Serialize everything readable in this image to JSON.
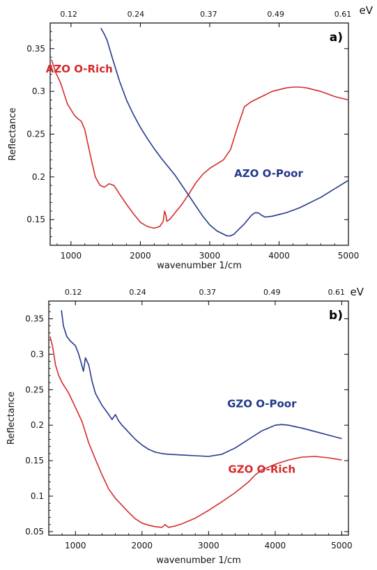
{
  "chart_data": [
    {
      "type": "line",
      "panel_label": "a)",
      "xlabel": "wavenumber 1/cm",
      "ylabel": "Reflectance",
      "top_axis_unit": "eV",
      "xlim": [
        700,
        5000
      ],
      "ylim": [
        0.12,
        0.38
      ],
      "x_ticks": [
        1000,
        2000,
        3000,
        4000,
        5000
      ],
      "x_tick_labels": [
        "1000",
        "2000",
        "3000",
        "4000",
        "5000"
      ],
      "y_ticks": [
        0.15,
        0.2,
        0.25,
        0.3,
        0.35
      ],
      "y_tick_labels": [
        "0.15",
        "0.2",
        "0.25",
        "0.3",
        "0.35"
      ],
      "top_ticks_x": [
        968,
        1935,
        2984,
        3952,
        4920
      ],
      "top_tick_labels": [
        "0.12",
        "0.24",
        "0.37",
        "0.49",
        "0.61"
      ],
      "series": [
        {
          "name": "AZO O-Rich",
          "color": "#d42b2b",
          "label_x": 1120,
          "label_y": 0.322,
          "x": [
            720,
            780,
            850,
            950,
            1050,
            1100,
            1150,
            1200,
            1280,
            1350,
            1420,
            1480,
            1550,
            1620,
            1700,
            1800,
            1900,
            2000,
            2100,
            2200,
            2280,
            2330,
            2350,
            2370,
            2380,
            2420,
            2500,
            2600,
            2700,
            2800,
            2900,
            3000,
            3100,
            3200,
            3300,
            3400,
            3500,
            3600,
            3700,
            3800,
            3900,
            4000,
            4100,
            4200,
            4300,
            4400,
            4500,
            4600,
            4700,
            4800,
            4900,
            5000
          ],
          "values": [
            0.337,
            0.322,
            0.31,
            0.285,
            0.272,
            0.268,
            0.265,
            0.255,
            0.225,
            0.2,
            0.19,
            0.188,
            0.192,
            0.19,
            0.18,
            0.168,
            0.157,
            0.147,
            0.142,
            0.14,
            0.142,
            0.148,
            0.16,
            0.155,
            0.148,
            0.15,
            0.158,
            0.168,
            0.18,
            0.193,
            0.203,
            0.21,
            0.215,
            0.22,
            0.232,
            0.258,
            0.282,
            0.288,
            0.292,
            0.296,
            0.3,
            0.302,
            0.304,
            0.305,
            0.305,
            0.304,
            0.302,
            0.3,
            0.297,
            0.294,
            0.292,
            0.29
          ]
        },
        {
          "name": "AZO O-Poor",
          "color": "#22398a",
          "label_x": 3850,
          "label_y": 0.2,
          "x": [
            1430,
            1480,
            1520,
            1600,
            1700,
            1800,
            1900,
            2000,
            2100,
            2200,
            2300,
            2400,
            2500,
            2600,
            2700,
            2800,
            2900,
            3000,
            3100,
            3200,
            3250,
            3300,
            3350,
            3400,
            3500,
            3600,
            3650,
            3700,
            3750,
            3800,
            3900,
            4000,
            4100,
            4200,
            4300,
            4400,
            4500,
            4600,
            4700,
            4800,
            4900,
            5000
          ],
          "values": [
            0.374,
            0.367,
            0.36,
            0.338,
            0.312,
            0.29,
            0.273,
            0.258,
            0.245,
            0.233,
            0.222,
            0.212,
            0.202,
            0.19,
            0.178,
            0.166,
            0.154,
            0.144,
            0.137,
            0.133,
            0.131,
            0.131,
            0.133,
            0.137,
            0.145,
            0.155,
            0.158,
            0.158,
            0.155,
            0.153,
            0.154,
            0.156,
            0.158,
            0.161,
            0.164,
            0.168,
            0.172,
            0.176,
            0.181,
            0.186,
            0.191,
            0.196
          ]
        }
      ]
    },
    {
      "type": "line",
      "panel_label": "b)",
      "xlabel": "wavenumber 1/cm",
      "ylabel": "Reflectance",
      "top_axis_unit": "eV",
      "xlim": [
        600,
        5100
      ],
      "ylim": [
        0.045,
        0.375
      ],
      "x_ticks": [
        1000,
        2000,
        3000,
        4000,
        5000
      ],
      "x_tick_labels": [
        "1000",
        "2000",
        "3000",
        "4000",
        "5000"
      ],
      "y_ticks": [
        0.05,
        0.1,
        0.15,
        0.2,
        0.25,
        0.3,
        0.35
      ],
      "y_tick_labels": [
        "0.05",
        "0.1",
        "0.15",
        "0.2",
        "0.25",
        "0.3",
        "0.35"
      ],
      "top_ticks_x": [
        968,
        1935,
        2984,
        3952,
        4920
      ],
      "top_tick_labels": [
        "0.12",
        "0.24",
        "0.37",
        "0.49",
        "0.61"
      ],
      "series": [
        {
          "name": "GZO O-Poor",
          "color": "#22398a",
          "label_x": 3800,
          "label_y": 0.225,
          "x": [
            790,
            820,
            870,
            930,
            1000,
            1050,
            1100,
            1120,
            1150,
            1200,
            1250,
            1300,
            1400,
            1500,
            1550,
            1600,
            1650,
            1700,
            1800,
            1900,
            2000,
            2100,
            2200,
            2300,
            2400,
            2600,
            2800,
            3000,
            3200,
            3400,
            3600,
            3800,
            4000,
            4100,
            4200,
            4400,
            4600,
            4800,
            5000
          ],
          "values": [
            0.362,
            0.34,
            0.325,
            0.318,
            0.312,
            0.3,
            0.283,
            0.276,
            0.295,
            0.285,
            0.262,
            0.245,
            0.228,
            0.215,
            0.208,
            0.215,
            0.206,
            0.2,
            0.19,
            0.18,
            0.172,
            0.166,
            0.162,
            0.16,
            0.159,
            0.158,
            0.157,
            0.156,
            0.159,
            0.168,
            0.18,
            0.192,
            0.2,
            0.201,
            0.2,
            0.196,
            0.191,
            0.186,
            0.181
          ]
        },
        {
          "name": "GZO O-Rich",
          "color": "#d42b2b",
          "label_x": 3800,
          "label_y": 0.133,
          "x": [
            620,
            660,
            700,
            750,
            800,
            900,
            1000,
            1100,
            1200,
            1300,
            1400,
            1500,
            1600,
            1700,
            1800,
            1900,
            2000,
            2100,
            2200,
            2300,
            2350,
            2370,
            2400,
            2500,
            2600,
            2800,
            3000,
            3200,
            3400,
            3600,
            3700,
            3800,
            4000,
            4200,
            4400,
            4600,
            4800,
            5000
          ],
          "values": [
            0.325,
            0.31,
            0.285,
            0.27,
            0.26,
            0.245,
            0.225,
            0.205,
            0.175,
            0.152,
            0.13,
            0.11,
            0.097,
            0.087,
            0.077,
            0.068,
            0.062,
            0.059,
            0.057,
            0.056,
            0.06,
            0.058,
            0.056,
            0.058,
            0.061,
            0.069,
            0.08,
            0.092,
            0.105,
            0.12,
            0.13,
            0.137,
            0.145,
            0.151,
            0.155,
            0.156,
            0.154,
            0.151
          ]
        }
      ]
    }
  ]
}
